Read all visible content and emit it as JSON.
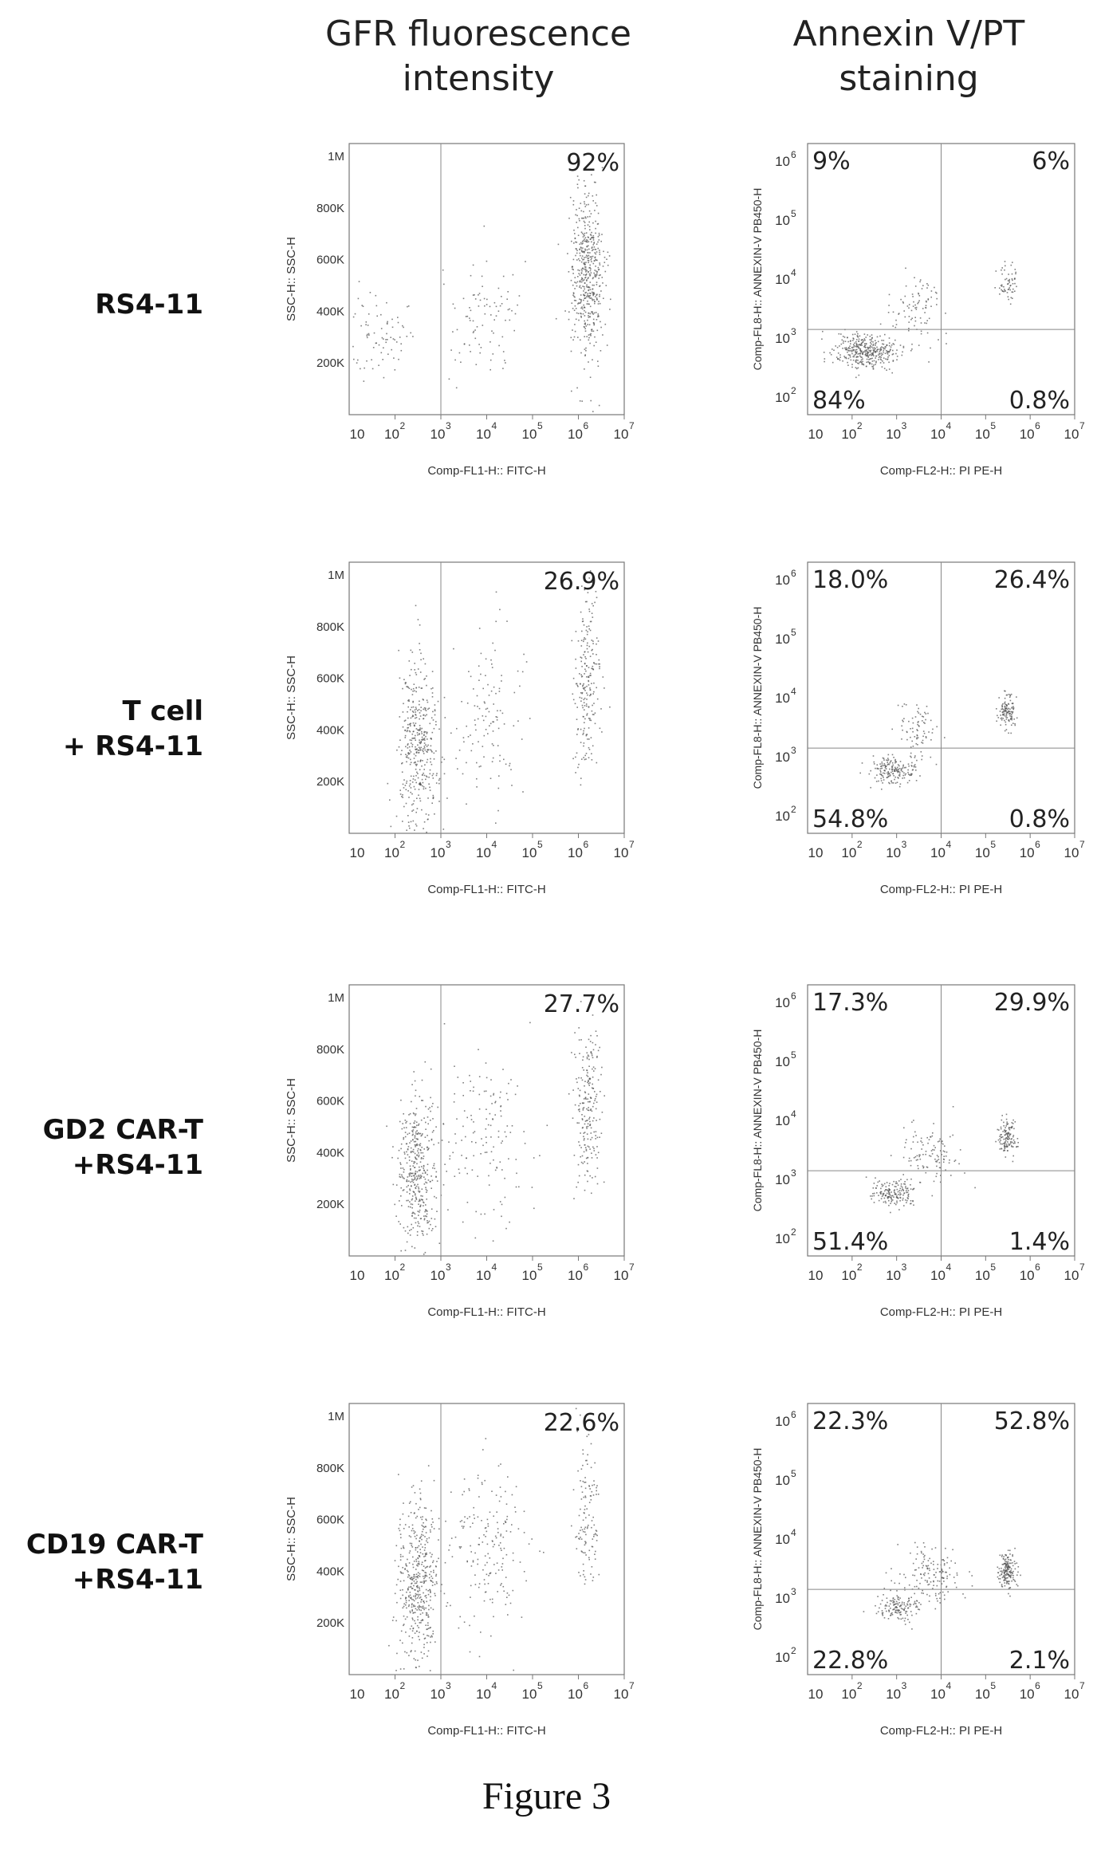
{
  "headers": {
    "gfr": "GFR fluorescence\nintensity",
    "annexin": "Annexin V/PT\nstaining"
  },
  "figure_caption": "Figure 3",
  "rows": [
    {
      "label": "RS4-11"
    },
    {
      "label": "T cell\n+ RS4-11"
    },
    {
      "label": "GD2 CAR-T\n+RS4-11"
    },
    {
      "label": "CD19 CAR-T\n+RS4-11"
    }
  ],
  "chart_data": [
    {
      "type": "scatter",
      "panel": "gfr",
      "row": "RS4-11",
      "xlabel": "Comp-FL1-H:: FITC-H",
      "ylabel": "SSC-H:: SSC-H",
      "xscale": "log",
      "xlim": [
        10,
        10000000
      ],
      "ylim": [
        0,
        1050000
      ],
      "x_ticks": [
        "10",
        "10",
        "3",
        "10",
        "10",
        "10",
        "10"
      ],
      "x_ticks_exp": [
        "2",
        "",
        "",
        "4",
        "5",
        "6",
        "7"
      ],
      "y_ticks": [
        {
          "value": 200000,
          "label": "200K"
        },
        {
          "value": 400000,
          "label": "400K"
        },
        {
          "value": 600000,
          "label": "600K"
        },
        {
          "value": 800000,
          "label": "800K"
        },
        {
          "value": 1000000,
          "label": "1M"
        }
      ],
      "gate_x": 1000,
      "annotation": "92%",
      "clusters": [
        {
          "x": 1500000,
          "y": 550000,
          "n": 520,
          "sx": 0.18,
          "sy": 160000
        },
        {
          "x": 40,
          "y": 330000,
          "n": 80,
          "sx": 0.35,
          "sy": 90000
        },
        {
          "x": 8000,
          "y": 380000,
          "n": 90,
          "sx": 0.5,
          "sy": 120000
        }
      ]
    },
    {
      "type": "scatter",
      "panel": "annexin",
      "row": "RS4-11",
      "xlabel": "Comp-FL2-H:: PI PE-H",
      "ylabel": "Comp-FL8-H:: ANNEXIN-V PB450-H",
      "xscale": "log",
      "yscale": "log",
      "quadrants": {
        "tl": "9%",
        "tr": "6%",
        "bl": "84%",
        "br": "0.8%"
      },
      "clusters": [
        {
          "x": 200,
          "y": 600,
          "n": 380,
          "sx": 0.35,
          "sy": 0.15
        },
        {
          "x": 3000,
          "y": 3000,
          "n": 90,
          "sx": 0.3,
          "sy": 0.3
        },
        {
          "x": 300000,
          "y": 9000,
          "n": 60,
          "sx": 0.12,
          "sy": 0.15
        }
      ]
    },
    {
      "type": "scatter",
      "panel": "gfr",
      "row": "T cell + RS4-11",
      "xlabel": "Comp-FL1-H:: FITC-H",
      "ylabel": "SSC-H:: SSC-H",
      "xscale": "log",
      "annotation": "26.9%",
      "gate_x": 1000,
      "clusters": [
        {
          "x": 300,
          "y": 350000,
          "n": 420,
          "sx": 0.22,
          "sy": 160000
        },
        {
          "x": 1500000,
          "y": 580000,
          "n": 220,
          "sx": 0.14,
          "sy": 150000
        },
        {
          "x": 10000,
          "y": 450000,
          "n": 120,
          "sx": 0.45,
          "sy": 170000
        }
      ]
    },
    {
      "type": "scatter",
      "panel": "annexin",
      "row": "T cell + RS4-11",
      "xlabel": "Comp-FL2-H:: PI PE-H",
      "ylabel": "Comp-FL8-H:: ANNEXIN-V PB450-H",
      "xscale": "log",
      "yscale": "log",
      "quadrants": {
        "tl": "18.0%",
        "tr": "26.4%",
        "bl": "54.8%",
        "br": "0.8%"
      },
      "clusters": [
        {
          "x": 800,
          "y": 600,
          "n": 180,
          "sx": 0.25,
          "sy": 0.12
        },
        {
          "x": 3000,
          "y": 3000,
          "n": 80,
          "sx": 0.25,
          "sy": 0.25
        },
        {
          "x": 300000,
          "y": 6000,
          "n": 120,
          "sx": 0.1,
          "sy": 0.15
        }
      ]
    },
    {
      "type": "scatter",
      "panel": "gfr",
      "row": "GD2 CAR-T +RS4-11",
      "xlabel": "Comp-FL1-H:: FITC-H",
      "ylabel": "SSC-H:: SSC-H",
      "xscale": "log",
      "annotation": "27.7%",
      "gate_x": 1000,
      "clusters": [
        {
          "x": 300,
          "y": 330000,
          "n": 420,
          "sx": 0.22,
          "sy": 150000
        },
        {
          "x": 1500000,
          "y": 580000,
          "n": 220,
          "sx": 0.14,
          "sy": 150000
        },
        {
          "x": 10000,
          "y": 450000,
          "n": 140,
          "sx": 0.45,
          "sy": 170000
        }
      ]
    },
    {
      "type": "scatter",
      "panel": "annexin",
      "row": "GD2 CAR-T +RS4-11",
      "xlabel": "Comp-FL2-H:: PI PE-H",
      "ylabel": "Comp-FL8-H:: ANNEXIN-V PB450-H",
      "xscale": "log",
      "yscale": "log",
      "quadrants": {
        "tl": "17.3%",
        "tr": "29.9%",
        "bl": "51.4%",
        "br": "1.4%"
      },
      "clusters": [
        {
          "x": 800,
          "y": 600,
          "n": 170,
          "sx": 0.25,
          "sy": 0.12
        },
        {
          "x": 5000,
          "y": 3000,
          "n": 110,
          "sx": 0.35,
          "sy": 0.25
        },
        {
          "x": 300000,
          "y": 5000,
          "n": 130,
          "sx": 0.1,
          "sy": 0.15
        }
      ]
    },
    {
      "type": "scatter",
      "panel": "gfr",
      "row": "CD19 CAR-T +RS4-11",
      "xlabel": "Comp-FL1-H:: FITC-H",
      "ylabel": "SSC-H:: SSC-H",
      "xscale": "log",
      "annotation": "22.6%",
      "gate_x": 1000,
      "clusters": [
        {
          "x": 300,
          "y": 350000,
          "n": 460,
          "sx": 0.22,
          "sy": 160000
        },
        {
          "x": 1500000,
          "y": 600000,
          "n": 120,
          "sx": 0.14,
          "sy": 150000
        },
        {
          "x": 10000,
          "y": 480000,
          "n": 180,
          "sx": 0.45,
          "sy": 180000
        }
      ]
    },
    {
      "type": "scatter",
      "panel": "annexin",
      "row": "CD19 CAR-T +RS4-11",
      "xlabel": "Comp-FL2-H:: PI PE-H",
      "ylabel": "Comp-FL8-H:: ANNEXIN-V PB450-H",
      "xscale": "log",
      "yscale": "log",
      "quadrants": {
        "tl": "22.3%",
        "tr": "52.8%",
        "bl": "22.8%",
        "br": "2.1%"
      },
      "clusters": [
        {
          "x": 1000,
          "y": 700,
          "n": 140,
          "sx": 0.25,
          "sy": 0.12
        },
        {
          "x": 5000,
          "y": 2500,
          "n": 150,
          "sx": 0.35,
          "sy": 0.25
        },
        {
          "x": 300000,
          "y": 3000,
          "n": 170,
          "sx": 0.1,
          "sy": 0.15
        }
      ]
    }
  ]
}
